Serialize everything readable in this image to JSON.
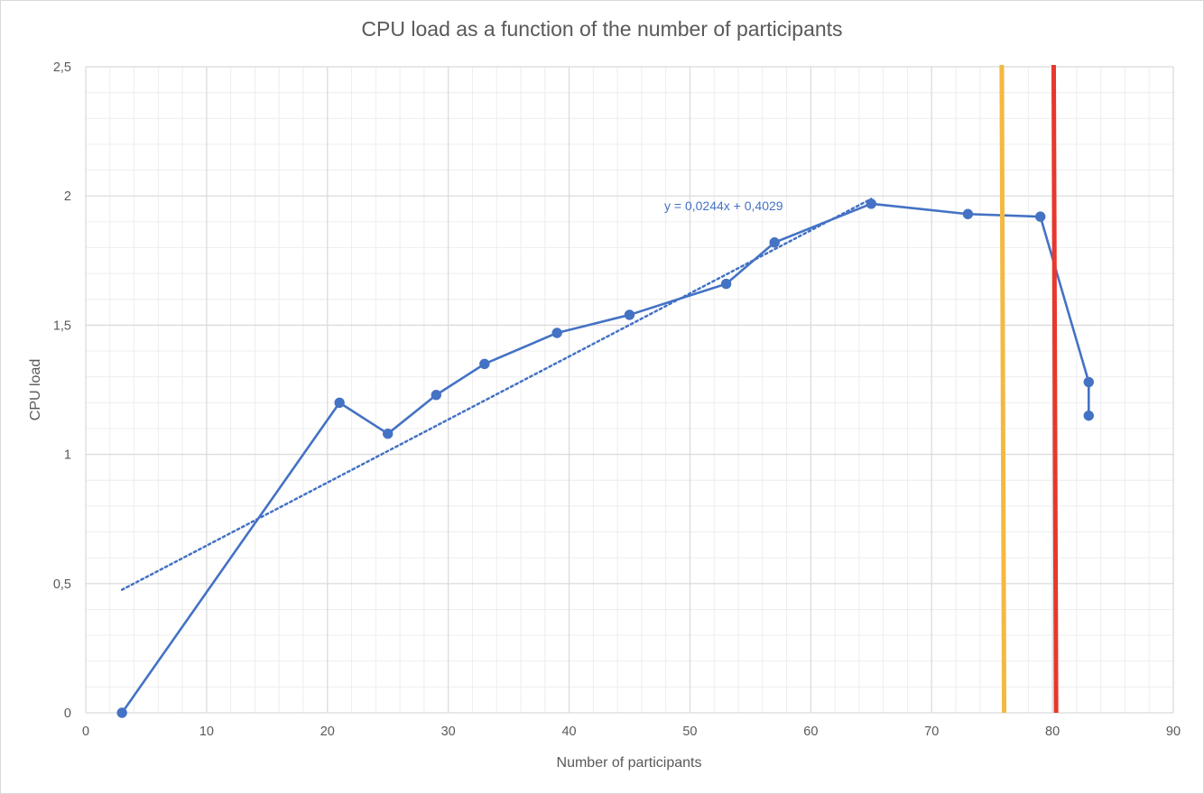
{
  "chart_data": {
    "type": "line",
    "title": "CPU load as a function of the number of participants",
    "xlabel": "Number of participants",
    "ylabel": "CPU load",
    "xlim": [
      0,
      90
    ],
    "ylim": [
      0,
      2.5
    ],
    "x_ticks": [
      "0",
      "10",
      "20",
      "30",
      "40",
      "50",
      "60",
      "70",
      "80",
      "90"
    ],
    "x_tick_values": [
      0,
      10,
      20,
      30,
      40,
      50,
      60,
      70,
      80,
      90
    ],
    "y_ticks": [
      "0",
      "0,5",
      "1",
      "1,5",
      "2",
      "2,5"
    ],
    "y_tick_values": [
      0,
      0.5,
      1,
      1.5,
      2,
      2.5
    ],
    "grid": "major and minor",
    "legend": "none",
    "series": [
      {
        "color": "#4472c4",
        "marker": "circle",
        "points": [
          {
            "x": 3,
            "y": 0.0
          },
          {
            "x": 21,
            "y": 1.2
          },
          {
            "x": 25,
            "y": 1.08
          },
          {
            "x": 29,
            "y": 1.23
          },
          {
            "x": 33,
            "y": 1.35
          },
          {
            "x": 39,
            "y": 1.47
          },
          {
            "x": 45,
            "y": 1.54
          },
          {
            "x": 53,
            "y": 1.66
          },
          {
            "x": 57,
            "y": 1.82
          },
          {
            "x": 65,
            "y": 1.97
          },
          {
            "x": 73,
            "y": 1.93
          },
          {
            "x": 79,
            "y": 1.92
          },
          {
            "x": 83,
            "y": 1.28
          },
          {
            "x": 83,
            "y": 1.15
          }
        ]
      }
    ],
    "trendline": {
      "type": "linear",
      "slope": 0.0244,
      "intercept": 0.4029,
      "x_range": [
        3,
        65
      ],
      "label": "y = 0,0244x + 0,4029",
      "color": "#4472c4",
      "style": "dotted"
    },
    "vertical_lines": [
      {
        "x_bottom": 76,
        "x_top": 75.8,
        "color": "#f4b942"
      },
      {
        "x_bottom": 80.3,
        "x_top": 80.1,
        "color": "#e8372c"
      }
    ]
  }
}
